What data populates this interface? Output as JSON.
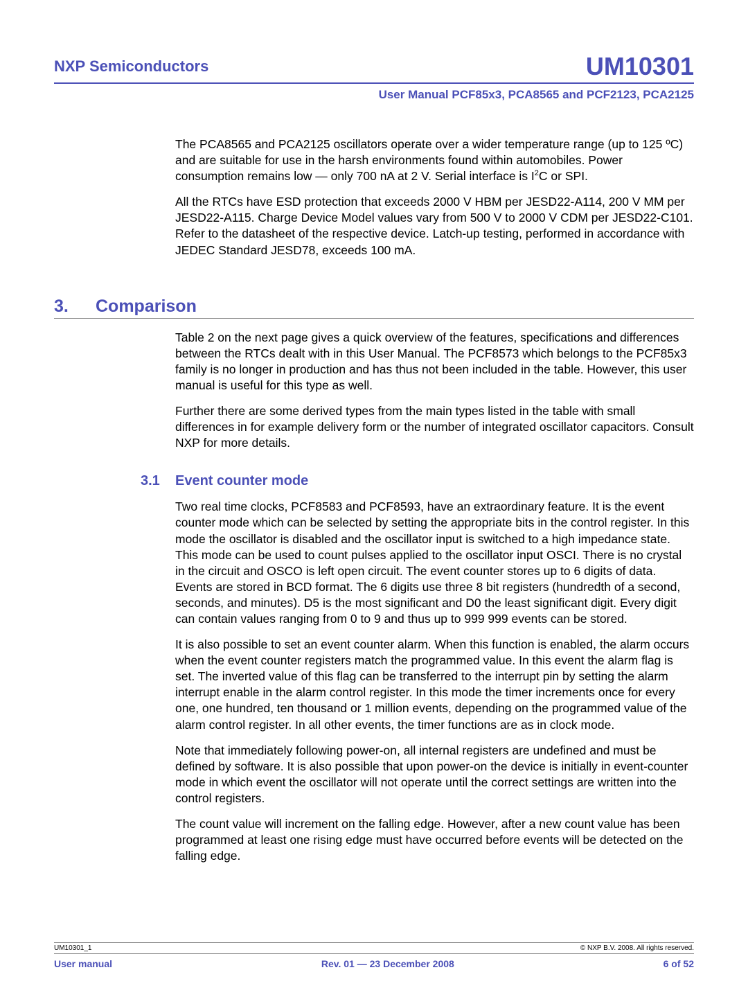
{
  "header": {
    "company": "NXP Semiconductors",
    "doccode": "UM10301",
    "subtitle": "User Manual PCF85x3, PCA8565 and PCF2123, PCA2125"
  },
  "intro": {
    "p1": "The PCA8565 and PCA2125 oscillators operate over a wider temperature range (up to 125 ºC) and are suitable for use in the harsh environments found within automobiles. Power consumption remains low — only 700 nA at 2 V. Serial interface is I",
    "p1_sup": "2",
    "p1_tail": "C or SPI.",
    "p2": "All the RTCs have ESD protection that exceeds 2000 V HBM per JESD22-A114, 200 V MM per JESD22-A115. Charge Device Model values vary from 500 V to 2000 V CDM per JESD22-C101. Refer to the datasheet of the respective device. Latch-up testing, performed in accordance with JEDEC Standard JESD78, exceeds 100 mA."
  },
  "sec3": {
    "num": "3.",
    "title": "Comparison",
    "p1": "Table 2 on the next page gives a quick overview of the features, specifications and differences between the RTCs dealt with in this User Manual. The PCF8573 which belongs to the PCF85x3 family is no longer in production and has thus not been included in the table. However, this user manual is useful for this type as well.",
    "p2": "Further there are some derived types from the main types listed in the table with small differences in for example delivery form or the number of integrated oscillator capacitors. Consult NXP for more details."
  },
  "sec31": {
    "num": "3.1",
    "title": "Event counter mode",
    "p1": "Two real time clocks, PCF8583 and PCF8593, have an extraordinary feature. It is the event counter mode which can be selected by setting the appropriate bits in the control register. In this mode the oscillator is disabled and the oscillator input is switched to a high impedance state. This mode can be used to count pulses applied to the oscillator input OSCI. There is no crystal in the circuit and OSCO is left open circuit. The event counter stores up to 6 digits of data. Events are stored in BCD format. The 6 digits use three 8 bit registers (hundredth of a second, seconds, and minutes). D5 is the most significant and D0 the least significant digit. Every digit can contain values ranging from 0 to 9 and thus up to 999 999 events can be stored.",
    "p2": "It is also possible to set an event counter alarm. When this function is enabled, the alarm occurs when the event counter registers match the programmed value. In this event the alarm flag is set. The inverted value of this flag can be transferred to the interrupt pin by setting the alarm interrupt enable in the alarm control register. In this mode the timer increments once for every one, one hundred, ten thousand or 1 million events, depending on the programmed value of the alarm control register. In all other events, the timer functions are as in clock mode.",
    "p3": "Note that immediately following power-on, all internal registers are undefined and must be defined by software. It is also possible that upon power-on the device is initially in event-counter mode in which event the oscillator will not operate until the correct settings are written into the control registers.",
    "p4": "The count value will increment on the falling edge. However, after a new count value has been programmed at least one rising edge must have occurred before events will be detected on the falling edge."
  },
  "footer": {
    "code": "UM10301_1",
    "copyright": "© NXP B.V. 2008. All rights reserved.",
    "left": "User manual",
    "center": "Rev. 01 — 23 December 2008",
    "right": "6 of 52"
  }
}
